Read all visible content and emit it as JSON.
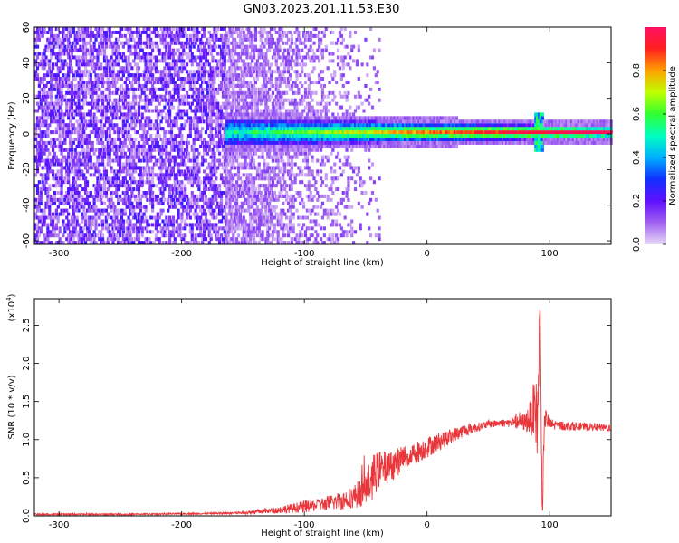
{
  "figure_title": "GN03.2023.201.11.53.E30",
  "chart_data": [
    {
      "type": "heatmap",
      "title": "",
      "xlabel": "Height of straight line (km)",
      "ylabel": "Frequency (Hz)",
      "xlim": [
        -320,
        150
      ],
      "ylim": [
        -62,
        60
      ],
      "xticks": [
        -300,
        -200,
        -100,
        0,
        100
      ],
      "yticks": [
        60,
        40,
        20,
        0,
        -20,
        -40,
        -60
      ],
      "colorbar": {
        "label": "Normalized spectral amplitude",
        "range": [
          0.0,
          1.0
        ],
        "ticks": [
          "0.0",
          "0.2",
          "0.4",
          "0.6",
          "0.8"
        ],
        "colormap": [
          "#e8d8f8",
          "#a060f0",
          "#6010ff",
          "#1030ff",
          "#00b0ff",
          "#00ffc0",
          "#30ff30",
          "#c0ff00",
          "#ffa000",
          "#ff2020",
          "#ff1060"
        ]
      },
      "structure": {
        "broadband_noise_x_range": [
          -320,
          -165
        ],
        "narrowband_signal_center_hz": 0,
        "band_halfwidth_hz_start": 8,
        "band_halfwidth_hz_end": 3,
        "band_onset_km": -165,
        "spike_at_km": 90
      }
    },
    {
      "type": "line",
      "title": "",
      "xlabel": "Height of straight line (km)",
      "ylabel": "SNR (10 * v/v)",
      "y_scale_label": "(x10",
      "y_scale_exp": "4",
      "y_scale_close": ")",
      "xlim": [
        -320,
        150
      ],
      "ylim": [
        0,
        2.85
      ],
      "xticks": [
        -300,
        -200,
        -100,
        0,
        100
      ],
      "yticks": [
        "0.0",
        "0.5",
        "1.0",
        "1.5",
        "2.0",
        "2.5"
      ],
      "color": "#e8363a",
      "series": [
        {
          "name": "",
          "x": [
            -320,
            -250,
            -180,
            -150,
            -125,
            -110,
            -100,
            -90,
            -80,
            -70,
            -60,
            -50,
            -45,
            -40,
            -30,
            -20,
            -10,
            0,
            10,
            20,
            30,
            40,
            50,
            60,
            70,
            80,
            85,
            88,
            90,
            92,
            94,
            96,
            100,
            110,
            130,
            150
          ],
          "y": [
            0.02,
            0.02,
            0.03,
            0.04,
            0.07,
            0.1,
            0.12,
            0.14,
            0.17,
            0.2,
            0.25,
            0.35,
            0.5,
            0.6,
            0.65,
            0.75,
            0.82,
            0.9,
            0.98,
            1.05,
            1.12,
            1.16,
            1.2,
            1.22,
            1.22,
            1.23,
            1.3,
            1.5,
            1.15,
            2.8,
            0.1,
            1.3,
            1.2,
            1.18,
            1.17,
            1.15
          ],
          "noise_amplitude": [
            0.01,
            0.01,
            0.01,
            0.02,
            0.04,
            0.06,
            0.08,
            0.08,
            0.1,
            0.12,
            0.15,
            0.22,
            0.3,
            0.25,
            0.2,
            0.18,
            0.15,
            0.14,
            0.12,
            0.1,
            0.08,
            0.06,
            0.05,
            0.05,
            0.06,
            0.12,
            0.25,
            0.4,
            0.5,
            0.3,
            0.3,
            0.15,
            0.08,
            0.06,
            0.05,
            0.05
          ]
        }
      ]
    }
  ]
}
